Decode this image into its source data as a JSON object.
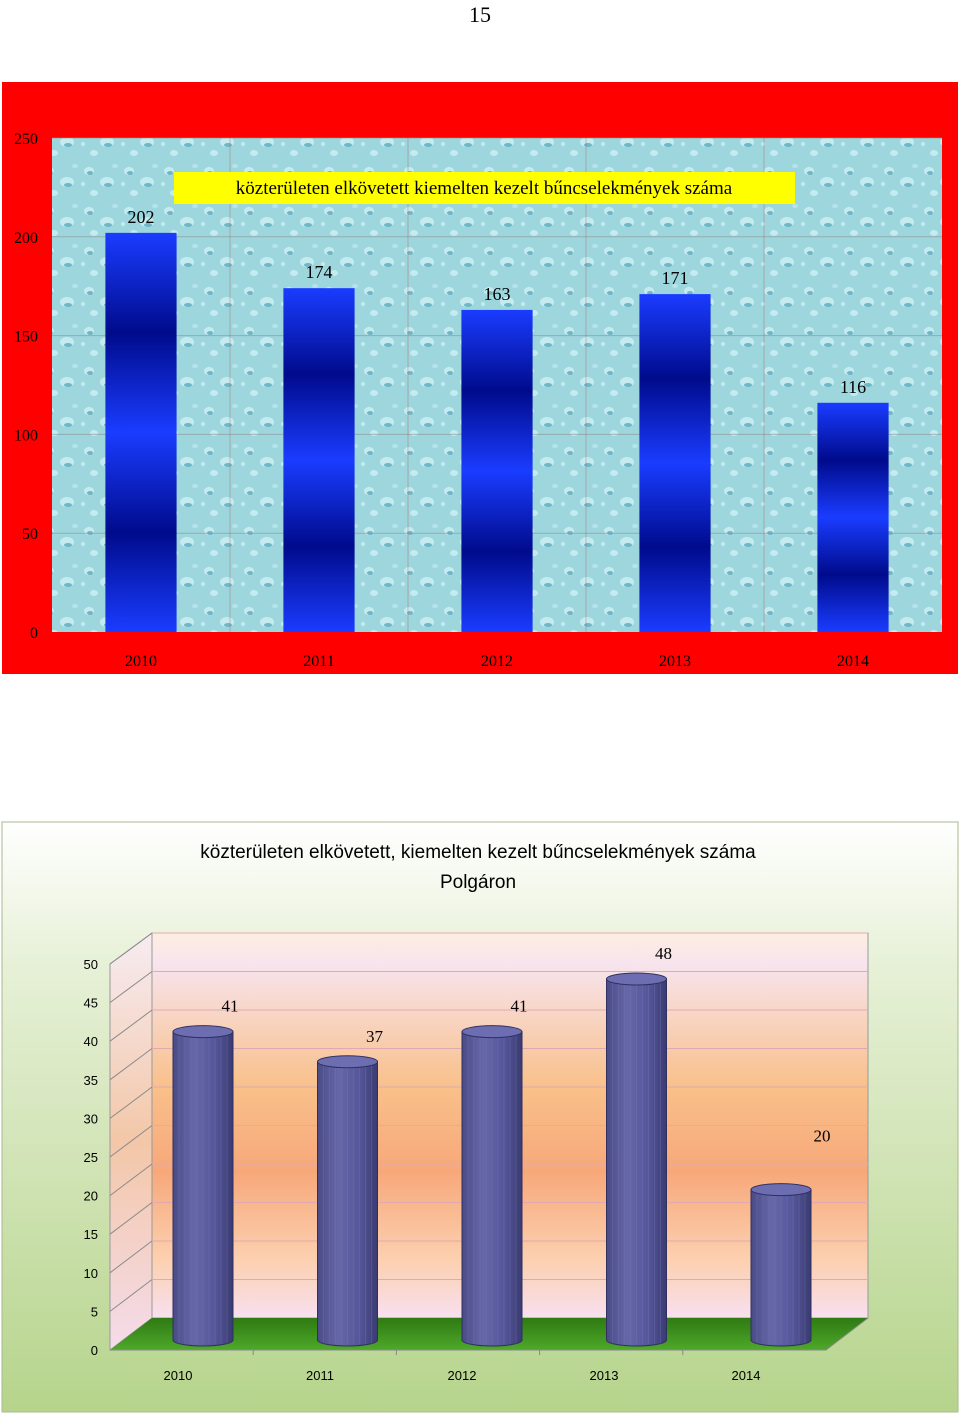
{
  "page": {
    "number": "15"
  },
  "chart_data": [
    {
      "type": "bar",
      "title": "közterületen elkövetett kiemelten kezelt bűncselekmények száma",
      "categories": [
        "2010",
        "2011",
        "2012",
        "2013",
        "2014"
      ],
      "values": [
        202,
        174,
        163,
        171,
        116
      ],
      "data_labels": [
        "202",
        "174",
        "163",
        "171",
        "116"
      ],
      "ylim": [
        0,
        250
      ],
      "yticks": [
        0,
        50,
        100,
        150,
        200,
        250
      ],
      "ytick_labels": [
        "0",
        "50",
        "100",
        "150",
        "200",
        "250"
      ],
      "xlabel": "",
      "ylabel": "",
      "grid": true,
      "legend": "none",
      "colors": {
        "frame": "#ff0000",
        "plot_bg": "#9ed4dc",
        "bar_light": "#1a3cff",
        "bar_dark": "#000b8c",
        "title_bg": "#ffff00"
      }
    },
    {
      "type": "bar",
      "title": "közterületen elkövetett, kiemelten kezelt bűncselekmények száma Polgáron",
      "title_lines": [
        "közterületen elkövetett, kiemelten kezelt bűncselekmények száma",
        "Polgáron"
      ],
      "categories": [
        "2010",
        "2011",
        "2012",
        "2013",
        "2014"
      ],
      "values": [
        41,
        37,
        41,
        48,
        20
      ],
      "data_labels": [
        "41",
        "37",
        "41",
        "48",
        "20"
      ],
      "ylim": [
        0,
        50
      ],
      "yticks": [
        0,
        5,
        10,
        15,
        20,
        25,
        30,
        35,
        40,
        45,
        50
      ],
      "ytick_labels": [
        "0",
        "5",
        "10",
        "15",
        "20",
        "25",
        "30",
        "35",
        "40",
        "45",
        "50"
      ],
      "xlabel": "",
      "ylabel": "",
      "grid": true,
      "legend": "none",
      "colors": {
        "cylinder": "#5b5c9c",
        "cylinder_top": "#6e6fb0",
        "floor": "#3a8c1e",
        "outer_bg": "#c6dca8"
      }
    }
  ]
}
